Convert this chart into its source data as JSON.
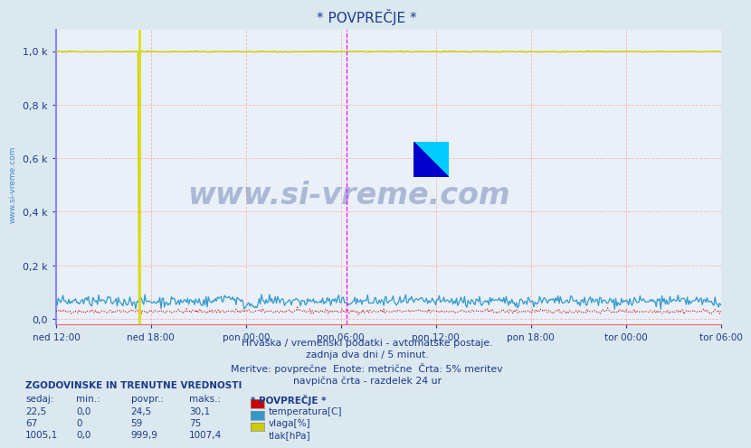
{
  "title": "* POVPREČJE *",
  "bg_color": "#dce8f0",
  "plot_bg_color": "#eaf0f8",
  "text_color": "#1a3a8b",
  "grid_color_h": "#ffaaaa",
  "grid_color_v": "#ffaaaa",
  "xlabel_times": [
    "ned 12:00",
    "ned 18:00",
    "pon 00:00",
    "pon 06:00",
    "pon 12:00",
    "pon 18:00",
    "tor 00:00",
    "tor 06:00"
  ],
  "yticks": [
    0.0,
    0.2,
    0.4,
    0.6,
    0.8,
    1.0
  ],
  "ytick_labels": [
    "0,0",
    "0,2 k",
    "0,4 k",
    "0,6 k",
    "0,8 k",
    "1,0 k"
  ],
  "ylim": [
    -0.02,
    1.08
  ],
  "xlim": [
    0,
    576
  ],
  "n_points": 577,
  "temp_base": 0.028,
  "temp_noise": 0.004,
  "vlaga_base": 0.065,
  "vlaga_noise": 0.01,
  "tlak_base": 0.998,
  "tlak_noise": 0.001,
  "temp_color": "#cc0000",
  "vlaga_color": "#3399cc",
  "tlak_color": "#cccc00",
  "vline_yellow_x": 72,
  "vline_magenta_x": 252,
  "vline_color_yellow": "#dddd00",
  "vline_color_magenta": "#ff00ff",
  "left_spine_color": "#8888ff",
  "watermark": "www.si-vreme.com",
  "subtitle1": "Hrvaška / vremenski podatki - avtomatske postaje.",
  "subtitle2": "zadnja dva dni / 5 minut.",
  "subtitle3": "Meritve: povprečne  Enote: metrične  Črta: 5% meritev",
  "subtitle4": "navpična črta - razdelek 24 ur",
  "table_header": "ZGODOVINSKE IN TRENUTNE VREDNOSTI",
  "col_headers": [
    "sedaj:",
    "min.:",
    "povpr.:",
    "maks.:",
    "* POVPREČJE *"
  ],
  "row1": [
    "22,5",
    "0,0",
    "24,5",
    "30,1"
  ],
  "row2": [
    "67",
    "0",
    "59",
    "75"
  ],
  "row3": [
    "1005,1",
    "0,0",
    "999,9",
    "1007,4"
  ],
  "legend_items": [
    "temperatura[C]",
    "vlaga[%]",
    "tlak[hPa]"
  ],
  "legend_colors": [
    "#cc0000",
    "#3399cc",
    "#cccc00"
  ],
  "watermark_color": "#1a3a8b",
  "sidebar_text": "www.si-vreme.com",
  "sidebar_color": "#4488cc",
  "logo_yellow": "#ffff00",
  "logo_cyan": "#00ccff",
  "logo_blue": "#0000cc"
}
